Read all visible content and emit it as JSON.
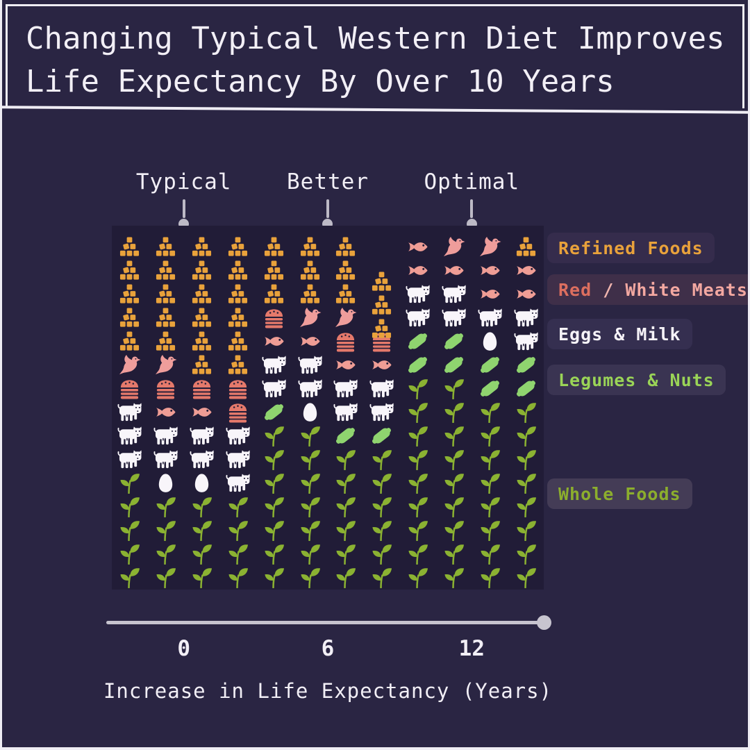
{
  "title": {
    "line1": "Changing Typical Western Diet Improves",
    "line2": "Life Expectancy By Over 10 Years"
  },
  "columns": [
    {
      "label": "Typical",
      "gain_years": 0,
      "grid": [
        [
          "cubes",
          "cubes",
          "cubes",
          "cubes"
        ],
        [
          "cubes",
          "cubes",
          "cubes",
          "cubes"
        ],
        [
          "cubes",
          "cubes",
          "cubes",
          "cubes"
        ],
        [
          "cubes",
          "cubes",
          "cubes",
          "cubes"
        ],
        [
          "cubes",
          "cubes",
          "cubes",
          "cubes"
        ],
        [
          "dove",
          "dove",
          "cubes",
          "cubes"
        ],
        [
          "burger",
          "burger",
          "burger",
          "burger"
        ],
        [
          "cow",
          "fish",
          "fish",
          "burger"
        ],
        [
          "cow",
          "cow",
          "cow",
          "cow"
        ],
        [
          "cow",
          "cow",
          "cow",
          "cow"
        ],
        [
          "sprout",
          "egg",
          "egg",
          "cow"
        ],
        [
          "sprout",
          "sprout",
          "sprout",
          "sprout"
        ],
        [
          "sprout",
          "sprout",
          "sprout",
          "sprout"
        ],
        [
          "sprout",
          "sprout",
          "sprout",
          "sprout"
        ],
        [
          "sprout",
          "sprout",
          "sprout",
          "sprout"
        ]
      ]
    },
    {
      "label": "Better",
      "gain_years": 6,
      "grid": [
        [
          "cubes",
          "cubes",
          "cubes",
          null
        ],
        [
          "cubes",
          "cubes",
          "cubes",
          "cubes:dn"
        ],
        [
          "cubes",
          "cubes",
          "cubes",
          "cubes:dn"
        ],
        [
          "burger",
          "dove",
          "dove",
          "cubes:dn"
        ],
        [
          "fish",
          "fish",
          "burger",
          "burger"
        ],
        [
          "cow",
          "cow",
          "fish",
          "fish"
        ],
        [
          "cow",
          "cow",
          "cow",
          "cow"
        ],
        [
          "lime",
          "egg",
          "cow",
          "cow"
        ],
        [
          "sprout",
          "sprout",
          "lime",
          "lime"
        ],
        [
          "sprout",
          "sprout",
          "sprout",
          "sprout"
        ],
        [
          "sprout",
          "sprout",
          "sprout",
          "sprout"
        ],
        [
          "sprout",
          "sprout",
          "sprout",
          "sprout"
        ],
        [
          "sprout",
          "sprout",
          "sprout",
          "sprout"
        ],
        [
          "sprout",
          "sprout",
          "sprout",
          "sprout"
        ],
        [
          "sprout",
          "sprout",
          "sprout",
          "sprout"
        ]
      ]
    },
    {
      "label": "Optimal",
      "gain_years": 12,
      "grid": [
        [
          "fish",
          "dove",
          "dove",
          "cubes"
        ],
        [
          "fish",
          "fish",
          "fish",
          "fish"
        ],
        [
          "cow",
          "cow",
          "fish",
          "fish"
        ],
        [
          "cow",
          "cow",
          "cow",
          "cow"
        ],
        [
          "lime",
          "lime",
          "egg",
          "cow"
        ],
        [
          "lime",
          "lime",
          "lime",
          "lime"
        ],
        [
          "sprout",
          "sprout",
          "lime",
          "lime"
        ],
        [
          "sprout",
          "sprout",
          "sprout",
          "sprout"
        ],
        [
          "sprout",
          "sprout",
          "sprout",
          "sprout"
        ],
        [
          "sprout",
          "sprout",
          "sprout",
          "sprout"
        ],
        [
          "sprout",
          "sprout",
          "sprout",
          "sprout"
        ],
        [
          "sprout",
          "sprout",
          "sprout",
          "sprout"
        ],
        [
          "sprout",
          "sprout",
          "sprout",
          "sprout"
        ],
        [
          "sprout",
          "sprout",
          "sprout",
          "sprout"
        ],
        [
          "sprout",
          "sprout",
          "sprout",
          "sprout"
        ]
      ]
    }
  ],
  "legend": {
    "items": [
      {
        "name": "refined-foods",
        "parts": [
          {
            "text": "Refined Foods",
            "color": "#E9A23B"
          }
        ]
      },
      {
        "name": "red-white-meats",
        "parts": [
          {
            "text": "Red",
            "color": "#DC6F5F"
          },
          {
            "text": " / ",
            "color": "#F0B5AE"
          },
          {
            "text": "White Meats",
            "color": "#F3A8A1"
          }
        ]
      },
      {
        "name": "eggs-milk",
        "parts": [
          {
            "text": "Eggs & Milk",
            "color": "#F6F3F8"
          }
        ]
      },
      {
        "name": "legumes-nuts",
        "parts": [
          {
            "text": "Legumes & Nuts",
            "color": "#9AD457"
          }
        ]
      },
      {
        "name": "whole-foods",
        "parts": [
          {
            "text": "Whole Foods",
            "color": "#8CAE2D"
          }
        ]
      }
    ]
  },
  "axis": {
    "ticks": [
      "0",
      "6",
      "12"
    ],
    "label": "Increase in Life Expectancy (Years)"
  },
  "icon_colors": {
    "cubes": "#E9A23B",
    "dove": "#EF9D9B",
    "burger": "#E5796B",
    "fish": "#EF9D95",
    "cow": "#F8F5FA",
    "egg": "#F8F5FA",
    "lime": "#8FD46F",
    "sprout": "#8BB232"
  },
  "colors": {
    "background": "#2A2543",
    "panel": "#211C37",
    "frame": "#EFEDF4",
    "pointer_grey": "#BDBAC6",
    "axis_grey": "#C7C4CF"
  },
  "chart_data": {
    "type": "pictogram",
    "title": "Changing Typical Western Diet Improves Life Expectancy By Over 10 Years",
    "xlabel": "Increase in Life Expectancy (Years)",
    "x_ticks": [
      0,
      6,
      12
    ],
    "icons_per_column": 60,
    "categories": [
      "Refined Foods",
      "Red / White Meats",
      "Eggs & Milk",
      "Legumes & Nuts",
      "Whole Foods"
    ],
    "icon_categories": {
      "cubes": "Refined Foods",
      "dove": "Red / White Meats",
      "burger": "Red / White Meats",
      "fish": "Red / White Meats",
      "cow": "Eggs & Milk",
      "egg": "Eggs & Milk",
      "lime": "Legumes & Nuts",
      "sprout": "Whole Foods"
    },
    "series": [
      {
        "name": "Typical",
        "life_expectancy_gain_years": 0,
        "counts": [
          22,
          9,
          12,
          0,
          17
        ]
      },
      {
        "name": "Better",
        "life_expectancy_gain_years": 6,
        "counts": [
          12,
          9,
          9,
          3,
          26
        ]
      },
      {
        "name": "Optimal",
        "life_expectancy_gain_years": 12,
        "counts": [
          1,
          9,
          8,
          8,
          34
        ]
      }
    ]
  }
}
